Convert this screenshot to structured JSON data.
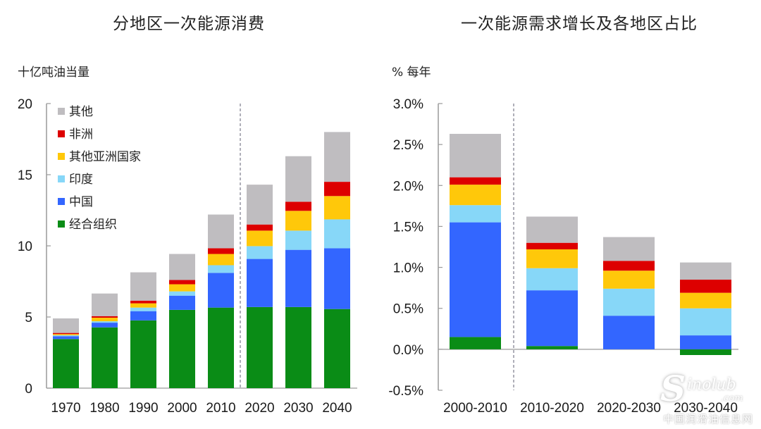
{
  "colors": {
    "other": "#bfbdc0",
    "africa": "#dd0000",
    "other_asia": "#ffc80a",
    "india": "#87d7f8",
    "china": "#3366ff",
    "oecd": "#0a8c16",
    "axis": "#9a9a9a"
  },
  "legend": [
    {
      "key": "other",
      "label": "其他"
    },
    {
      "key": "africa",
      "label": "非洲"
    },
    {
      "key": "other_asia",
      "label": "其他亚洲国家"
    },
    {
      "key": "india",
      "label": "印度"
    },
    {
      "key": "china",
      "label": "中国"
    },
    {
      "key": "oecd",
      "label": "经合组织"
    }
  ],
  "chart_data": [
    {
      "type": "bar",
      "stacked": true,
      "title": "分地区一次能源消费",
      "ylabel": "十亿吨油当量",
      "xlabel": "",
      "ylim": [
        0,
        20
      ],
      "yticks": [
        0,
        5,
        10,
        15,
        20
      ],
      "ytick_labels": [
        "0",
        "5",
        "10",
        "15",
        "20"
      ],
      "categories": [
        "1970",
        "1980",
        "1990",
        "2000",
        "2010",
        "2020",
        "2030",
        "2040"
      ],
      "divider_after": "2010",
      "legend_position": "top-left",
      "grid": false,
      "series": [
        {
          "key": "oecd",
          "name": "经合组织",
          "values": [
            3.45,
            4.27,
            4.76,
            5.5,
            5.66,
            5.7,
            5.7,
            5.56
          ]
        },
        {
          "key": "china",
          "name": "中国",
          "values": [
            0.2,
            0.33,
            0.65,
            1.0,
            2.44,
            3.38,
            4.02,
            4.27
          ]
        },
        {
          "key": "india",
          "name": "印度",
          "values": [
            0.07,
            0.1,
            0.25,
            0.3,
            0.54,
            0.9,
            1.35,
            2.03
          ]
        },
        {
          "key": "other_asia",
          "name": "其他亚洲国家",
          "values": [
            0.08,
            0.25,
            0.3,
            0.5,
            0.79,
            1.09,
            1.39,
            1.64
          ]
        },
        {
          "key": "africa",
          "name": "非洲",
          "values": [
            0.08,
            0.11,
            0.19,
            0.3,
            0.4,
            0.43,
            0.64,
            1.0
          ]
        },
        {
          "key": "other",
          "name": "其他",
          "values": [
            1.02,
            1.59,
            1.99,
            1.83,
            2.37,
            2.8,
            3.2,
            3.5
          ]
        }
      ]
    },
    {
      "type": "bar",
      "stacked": true,
      "title": "一次能源需求增长及各地区占比",
      "ylabel": "% 每年",
      "xlabel": "",
      "ylim": [
        -0.5,
        3.0
      ],
      "yticks": [
        -0.5,
        0,
        0.5,
        1.0,
        1.5,
        2.0,
        2.5,
        3.0
      ],
      "ytick_labels": [
        "-0.5%",
        "0.0%",
        "0.5%",
        "1.0%",
        "1.5%",
        "2.0%",
        "2.5%",
        "3.0%"
      ],
      "categories": [
        "2000-2010",
        "2010-2020",
        "2020-2030",
        "2030-2040"
      ],
      "divider_after": "2000-2010",
      "grid": false,
      "series": [
        {
          "key": "oecd",
          "name": "经合组织",
          "values": [
            0.15,
            0.04,
            0.0,
            -0.07
          ]
        },
        {
          "key": "china",
          "name": "中国",
          "values": [
            1.4,
            0.68,
            0.41,
            0.17
          ]
        },
        {
          "key": "india",
          "name": "印度",
          "values": [
            0.21,
            0.27,
            0.33,
            0.33
          ]
        },
        {
          "key": "other_asia",
          "name": "其他亚洲国家",
          "values": [
            0.25,
            0.23,
            0.22,
            0.19
          ]
        },
        {
          "key": "africa",
          "name": "非洲",
          "values": [
            0.09,
            0.08,
            0.12,
            0.16
          ]
        },
        {
          "key": "other",
          "name": "其他",
          "values": [
            0.53,
            0.32,
            0.29,
            0.21
          ]
        }
      ]
    }
  ],
  "watermark": {
    "brand_initial": "S",
    "brand_rest": "inolub",
    "domain": ".com",
    "cn_name": "中国润滑油信息网"
  }
}
